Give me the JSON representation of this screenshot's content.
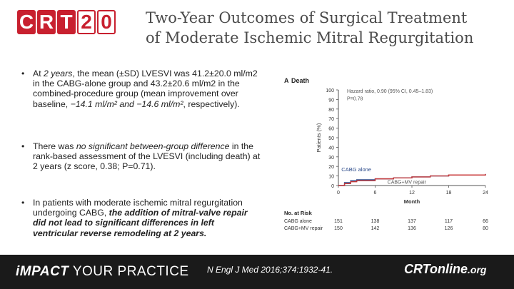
{
  "logo": {
    "letters": [
      "C",
      "R",
      "T",
      "2",
      "0"
    ]
  },
  "title": {
    "line1": "Two-Year Outcomes of Surgical Treatment",
    "line2": "of Moderate Ischemic Mitral Regurgitation"
  },
  "bullets": {
    "b1": {
      "p1": "At ",
      "p2": "2 years",
      "p3": ", the mean (±SD) LVESVI was 41.2±20.0 ml/m2 in the CABG-alone group and 43.2±20.6 ml/m2 in the combined-procedure group (mean improvement over baseline, ",
      "p4": "−14.1 ml/m² and −14.6 ml/m²",
      "p5": ", respectively)."
    },
    "b2": {
      "p1": "There was ",
      "p2": "no significant between-group difference ",
      "p3": "in the rank-based assessment of the LVESVI (including death) at 2 years (z score, 0.38; P=0.71)."
    },
    "b3": {
      "p1": "In patients with moderate ischemic mitral regurgitation undergoing CABG, ",
      "p2": "the addition of mitral-valve repair did not lead to significant differences in left ventricular reverse remodeling at 2 years."
    }
  },
  "chart_data": {
    "type": "line",
    "panel_label": "A",
    "title": "Death",
    "ylabel": "Patients (%)",
    "xlabel": "Month",
    "ylim": [
      0,
      100
    ],
    "xlim": [
      0,
      24
    ],
    "yticks": [
      "0",
      "10",
      "20",
      "30",
      "40",
      "50",
      "60",
      "70",
      "80",
      "90",
      "100"
    ],
    "xticks": [
      "0",
      "6",
      "12",
      "18",
      "24"
    ],
    "annotation": {
      "line1": "Hazard ratio, 0.90 (95% CI, 0.45–1.83)",
      "line2": "P=0.78"
    },
    "series": [
      {
        "name": "CABG alone",
        "color": "#2b4a8a",
        "x": [
          0,
          1,
          2,
          3,
          6,
          9,
          12,
          15,
          18,
          21,
          24
        ],
        "y": [
          0,
          3,
          5,
          6,
          7,
          8,
          9,
          10,
          11,
          11,
          12
        ]
      },
      {
        "name": "CABG+MV repair",
        "color": "#c83a3a",
        "x": [
          0,
          1,
          2,
          3,
          6,
          9,
          12,
          15,
          18,
          21,
          24
        ],
        "y": [
          0,
          2,
          4,
          5,
          7,
          8,
          9,
          10,
          11,
          11,
          12
        ]
      }
    ],
    "risk_table": {
      "header": "No. at Risk",
      "rows": [
        {
          "label": "CABG alone",
          "values": [
            "151",
            "138",
            "137",
            "117",
            "66"
          ]
        },
        {
          "label": "CABG+MV repair",
          "values": [
            "150",
            "142",
            "136",
            "126",
            "80"
          ]
        }
      ]
    }
  },
  "footer": {
    "impact_big": "iMPACT",
    "impact_rest": " YOUR PRACTICE",
    "citation": "N Engl J Med 2016;374:1932-41.",
    "brand_main": "CRTonline",
    "brand_dom": ".org"
  }
}
